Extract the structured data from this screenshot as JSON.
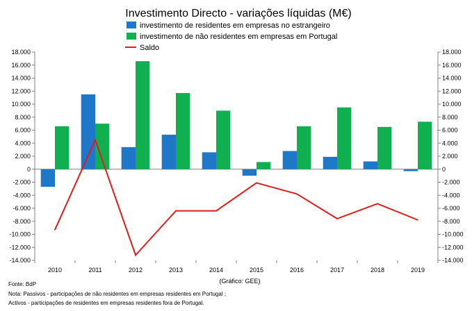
{
  "chart_data": {
    "type": "bar",
    "title": "Investimento Directo - variações líquidas (M€)",
    "categories": [
      "2010",
      "2011",
      "2012",
      "2013",
      "2014",
      "2015",
      "2016",
      "2017",
      "2018",
      "2019"
    ],
    "series": [
      {
        "name": "investimento de residentes em empresas no estrangeiro",
        "kind": "bar",
        "color": "#1f77c8",
        "values": [
          -2700,
          11500,
          3400,
          5300,
          2600,
          -1000,
          2800,
          1900,
          1200,
          -300
        ]
      },
      {
        "name": "investimento de não residentes em empresas em Portugal",
        "kind": "bar",
        "color": "#10b050",
        "values": [
          6600,
          7000,
          16600,
          11700,
          9000,
          1100,
          6600,
          9500,
          6500,
          7300
        ]
      },
      {
        "name": "Saldo",
        "kind": "line",
        "color": "#e21b1b",
        "values": [
          -9300,
          4500,
          -13200,
          -6400,
          -6400,
          -2100,
          -3800,
          -7600,
          -5300,
          -7800
        ]
      }
    ],
    "ylim": [
      -14000,
      18000
    ],
    "ytick_step": 2000,
    "y_tick_labels": [
      "-14.000",
      "-12.000",
      "-10.000",
      "-8.000",
      "-6.000",
      "-4.000",
      "-2.000",
      "0",
      "2.000",
      "4.000",
      "6.000",
      "8.000",
      "10.000",
      "12.000",
      "14.000",
      "16.000",
      "18.000"
    ],
    "secondary_y_axis": true,
    "legend_position": "top-center",
    "grid": false
  },
  "footer": {
    "credit": "(Gráfico: GEE)",
    "source": "Fonte: BdP",
    "note_1": "Nota: Passivos - participações de não residentes em empresas residentes em Portugal ;",
    "note_2": "Activos - participações de residentes em empresas residentes fora de Portugal."
  }
}
